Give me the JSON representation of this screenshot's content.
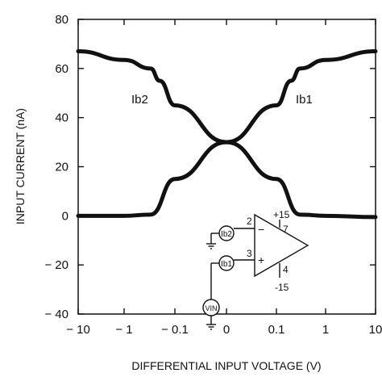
{
  "chart_data": {
    "type": "line",
    "title": "",
    "xlabel": "DIFFERENTIAL INPUT VOLTAGE (V)",
    "ylabel": "INPUT CURRENT (nA)",
    "x_ticks": [
      "-10",
      "-1",
      "-0.1",
      "0",
      "0.1",
      "1",
      "10"
    ],
    "y_ticks": [
      80,
      60,
      40,
      20,
      0,
      -20,
      -40
    ],
    "ylim": [
      -40,
      80
    ],
    "x_scale": "symmetric-log (decades)",
    "grid": false,
    "series": [
      {
        "name": "Ib1",
        "x": [
          "-10",
          "-1",
          "-0.3",
          "-0.1",
          "0",
          "0.1",
          "0.2",
          "0.3",
          "1",
          "10"
        ],
        "y": [
          0,
          0,
          0.5,
          15,
          30,
          45,
          55,
          60,
          63.5,
          67
        ]
      },
      {
        "name": "Ib2",
        "x": [
          "-10",
          "-1",
          "-0.3",
          "-0.2",
          "-0.1",
          "0",
          "0.1",
          "0.3",
          "1",
          "10"
        ],
        "y": [
          67,
          63.5,
          60,
          55,
          45,
          30,
          15,
          0.5,
          0,
          -0.5
        ]
      }
    ],
    "annotations": [
      "Ib2",
      "Ib1"
    ],
    "inset_schematic": {
      "supply_pos": "+15",
      "supply_neg": "-15",
      "pins": [
        "2",
        "3",
        "7",
        "4"
      ],
      "inverting_label": "Ib2",
      "noninverting_label": "Ib1",
      "source_label": "VIN",
      "minus_sign": "−",
      "plus_sign": "+"
    }
  }
}
